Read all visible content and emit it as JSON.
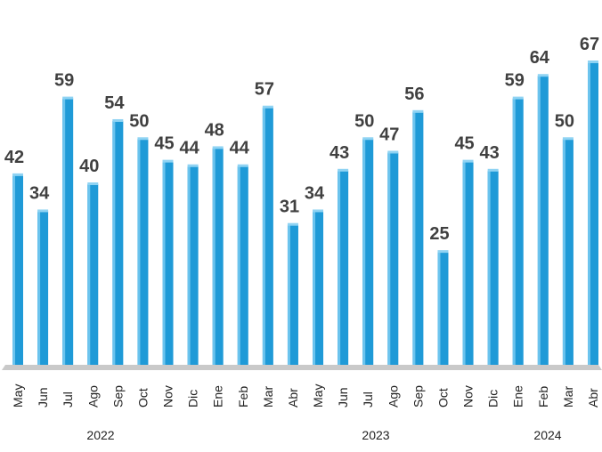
{
  "chart_data": {
    "type": "bar",
    "color": "#1f9ad7",
    "categories": [
      "May",
      "Jun",
      "Jul",
      "Ago",
      "Sep",
      "Oct",
      "Nov",
      "Dic",
      "Ene",
      "Feb",
      "Mar",
      "Abr",
      "May",
      "Jun",
      "Jul",
      "Ago",
      "Sep",
      "Oct",
      "Nov",
      "Dic",
      "Ene",
      "Feb",
      "Mar",
      "Abr"
    ],
    "values": [
      42,
      34,
      59,
      40,
      54,
      50,
      45,
      44,
      48,
      44,
      57,
      31,
      34,
      43,
      50,
      47,
      56,
      25,
      45,
      43,
      59,
      64,
      50,
      67
    ],
    "years": [
      "2022",
      "2023",
      "2024"
    ]
  }
}
